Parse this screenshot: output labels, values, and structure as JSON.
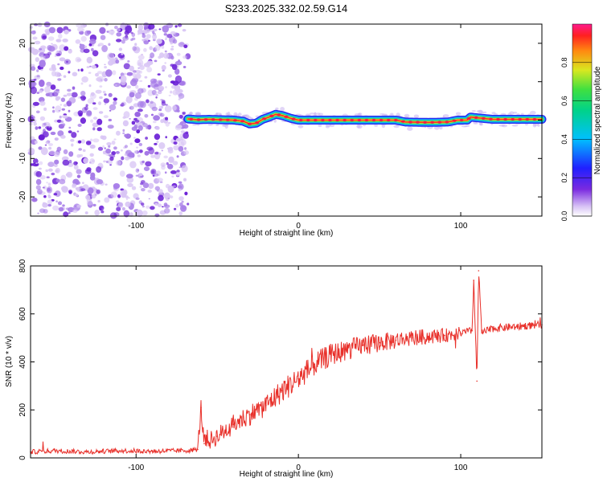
{
  "title": "S233.2025.332.02.59.G14",
  "colors": {
    "snr_line": "#e8302a",
    "speckle_light": "#d9c6f5",
    "speckle_dark": "#6a1fd6"
  },
  "chart_data": [
    {
      "type": "heatmap",
      "name": "spectrogram",
      "xlabel": "Height of straight line (km)",
      "ylabel": "Frequency (Hz)",
      "xlim": [
        -165,
        150
      ],
      "ylim": [
        -25,
        25
      ],
      "xticks": [
        -100,
        0,
        100
      ],
      "yticks": [
        -20,
        -10,
        0,
        10,
        20
      ],
      "noise_region_x": [
        -165,
        -68
      ],
      "signal_ridge": {
        "x": [
          -68,
          -62,
          -55,
          -48,
          -40,
          -34,
          -30,
          -26,
          -22,
          -18,
          -14,
          -10,
          -5,
          0,
          20,
          40,
          60,
          66,
          80,
          92,
          98,
          104,
          106,
          110,
          120,
          135,
          150
        ],
        "freq": [
          0.3,
          0.1,
          0.2,
          0.1,
          0.0,
          -0.3,
          -1.0,
          -0.8,
          0.2,
          0.8,
          1.5,
          1.2,
          0.5,
          0.0,
          0.0,
          0.0,
          0.0,
          -0.5,
          -0.6,
          -0.5,
          0.0,
          0.0,
          0.8,
          0.6,
          0.2,
          0.2,
          0.2
        ]
      },
      "colorbar": {
        "label": "Normalized spectral amplitude",
        "range": [
          0.0,
          1.0
        ],
        "ticks": [
          "0.0",
          "0.2",
          "0.4",
          "0.6",
          "0.8"
        ],
        "tick_values": [
          0.0,
          0.2,
          0.4,
          0.6,
          0.8
        ]
      }
    },
    {
      "type": "line",
      "name": "snr",
      "xlabel": "Height of straight line (km)",
      "ylabel": "SNR (10 * v/v)",
      "xlim": [
        -165,
        150
      ],
      "ylim": [
        0,
        800
      ],
      "xticks": [
        -100,
        0,
        100
      ],
      "yticks": [
        0,
        200,
        400,
        600,
        800
      ],
      "series": [
        {
          "name": "SNR",
          "x": [
            -165,
            -150,
            -130,
            -110,
            -90,
            -70,
            -62,
            -60,
            -58,
            -50,
            -40,
            -30,
            -20,
            -10,
            0,
            10,
            20,
            30,
            40,
            50,
            60,
            70,
            80,
            90,
            100,
            107,
            108,
            110,
            111,
            113,
            120,
            130,
            140,
            150
          ],
          "y": [
            25,
            30,
            25,
            30,
            28,
            30,
            35,
            210,
            60,
            90,
            140,
            180,
            220,
            280,
            330,
            390,
            430,
            450,
            470,
            480,
            490,
            500,
            505,
            510,
            520,
            530,
            740,
            320,
            780,
            520,
            540,
            545,
            550,
            555
          ]
        }
      ]
    }
  ]
}
